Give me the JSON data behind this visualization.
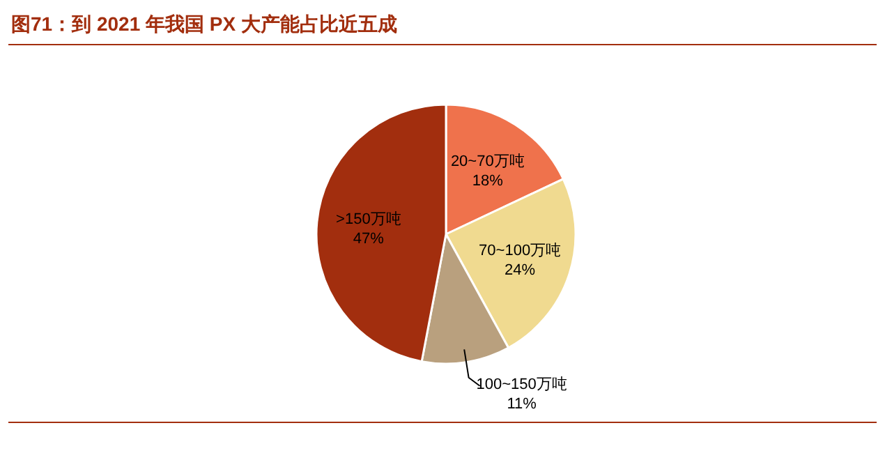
{
  "chart_data": {
    "type": "pie",
    "title": "图71：到 2021 年我国 PX 大产能占比近五成",
    "categories": [
      "20~70万吨",
      "70~100万吨",
      "100~150万吨",
      ">150万吨"
    ],
    "values": [
      18,
      24,
      11,
      47
    ],
    "colors": [
      "#ef724c",
      "#f0da90",
      "#b9a07e",
      "#a22e0e"
    ],
    "value_labels": [
      "18%",
      "24%",
      "11%",
      "47%"
    ]
  }
}
